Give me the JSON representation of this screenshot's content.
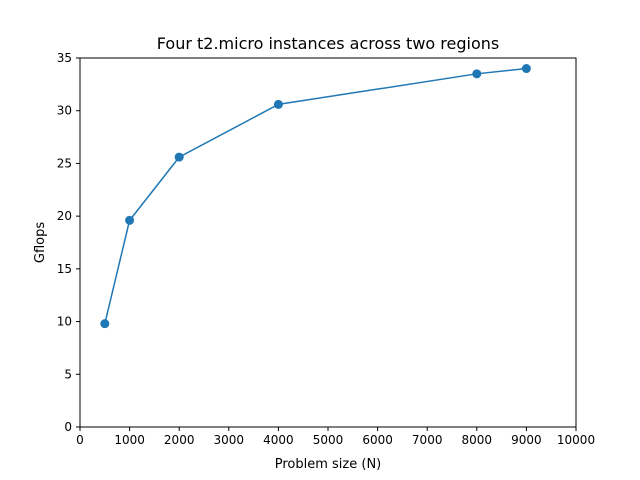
{
  "chart_data": {
    "type": "line",
    "title": "Four t2.micro instances across two regions",
    "xlabel": "Problem size (N)",
    "ylabel": "Gflops",
    "xlim": [
      0,
      10000
    ],
    "ylim": [
      0,
      35
    ],
    "xticks": [
      "0",
      "1000",
      "2000",
      "3000",
      "4000",
      "5000",
      "6000",
      "7000",
      "8000",
      "9000",
      "10000"
    ],
    "yticks": [
      "0",
      "5",
      "10",
      "15",
      "20",
      "25",
      "30",
      "35"
    ],
    "grid": false,
    "series": [
      {
        "color": "#1f77b4",
        "marker": "circle",
        "x": [
          500,
          1000,
          2000,
          4000,
          8000,
          9000
        ],
        "y": [
          9.8,
          19.6,
          25.6,
          30.6,
          33.5,
          34.0
        ]
      }
    ]
  }
}
